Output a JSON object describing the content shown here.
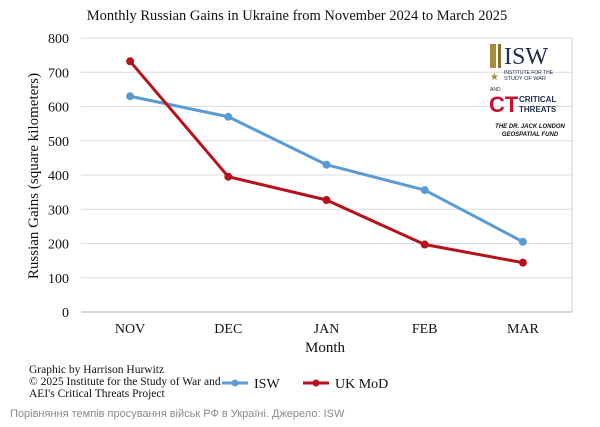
{
  "chart_data": {
    "type": "line",
    "title": "Monthly Russian Gains in Ukraine from November 2024 to March 2025",
    "xlabel": "Month",
    "ylabel": "Russian Gains (square kilometers)",
    "categories": [
      "NOV",
      "DEC",
      "JAN",
      "FEB",
      "MAR"
    ],
    "ylim": [
      0,
      800
    ],
    "yticks": [
      0,
      100,
      200,
      300,
      400,
      500,
      600,
      700,
      800
    ],
    "grid": true,
    "legend_position": "bottom",
    "series": [
      {
        "name": "ISW",
        "color": "#5a9bd4",
        "values": [
          630,
          570,
          430,
          356,
          205
        ]
      },
      {
        "name": "UK MoD",
        "color": "#b5121b",
        "values": [
          732,
          395,
          327,
          197,
          144
        ]
      }
    ]
  },
  "credit": {
    "line1": "Graphic by Harrison Hurwitz",
    "line2": "© 2025 Institute for the Study of War and",
    "line3": "AEI's Critical Threats Project"
  },
  "logo": {
    "isw": "ISW",
    "isw_sub1": "INSTITUTE FOR THE",
    "isw_sub2": "STUDY OF WAR",
    "and": "AND",
    "ct": "CT",
    "ct_word1": "CRITICAL",
    "ct_word2": "THREATS",
    "fund1": "THE DR. JACK LONDON",
    "fund2": "GEOSPATIAL FUND"
  },
  "caption": "Порівняння темпів просування військ РФ в Україні. Джерело: ISW"
}
